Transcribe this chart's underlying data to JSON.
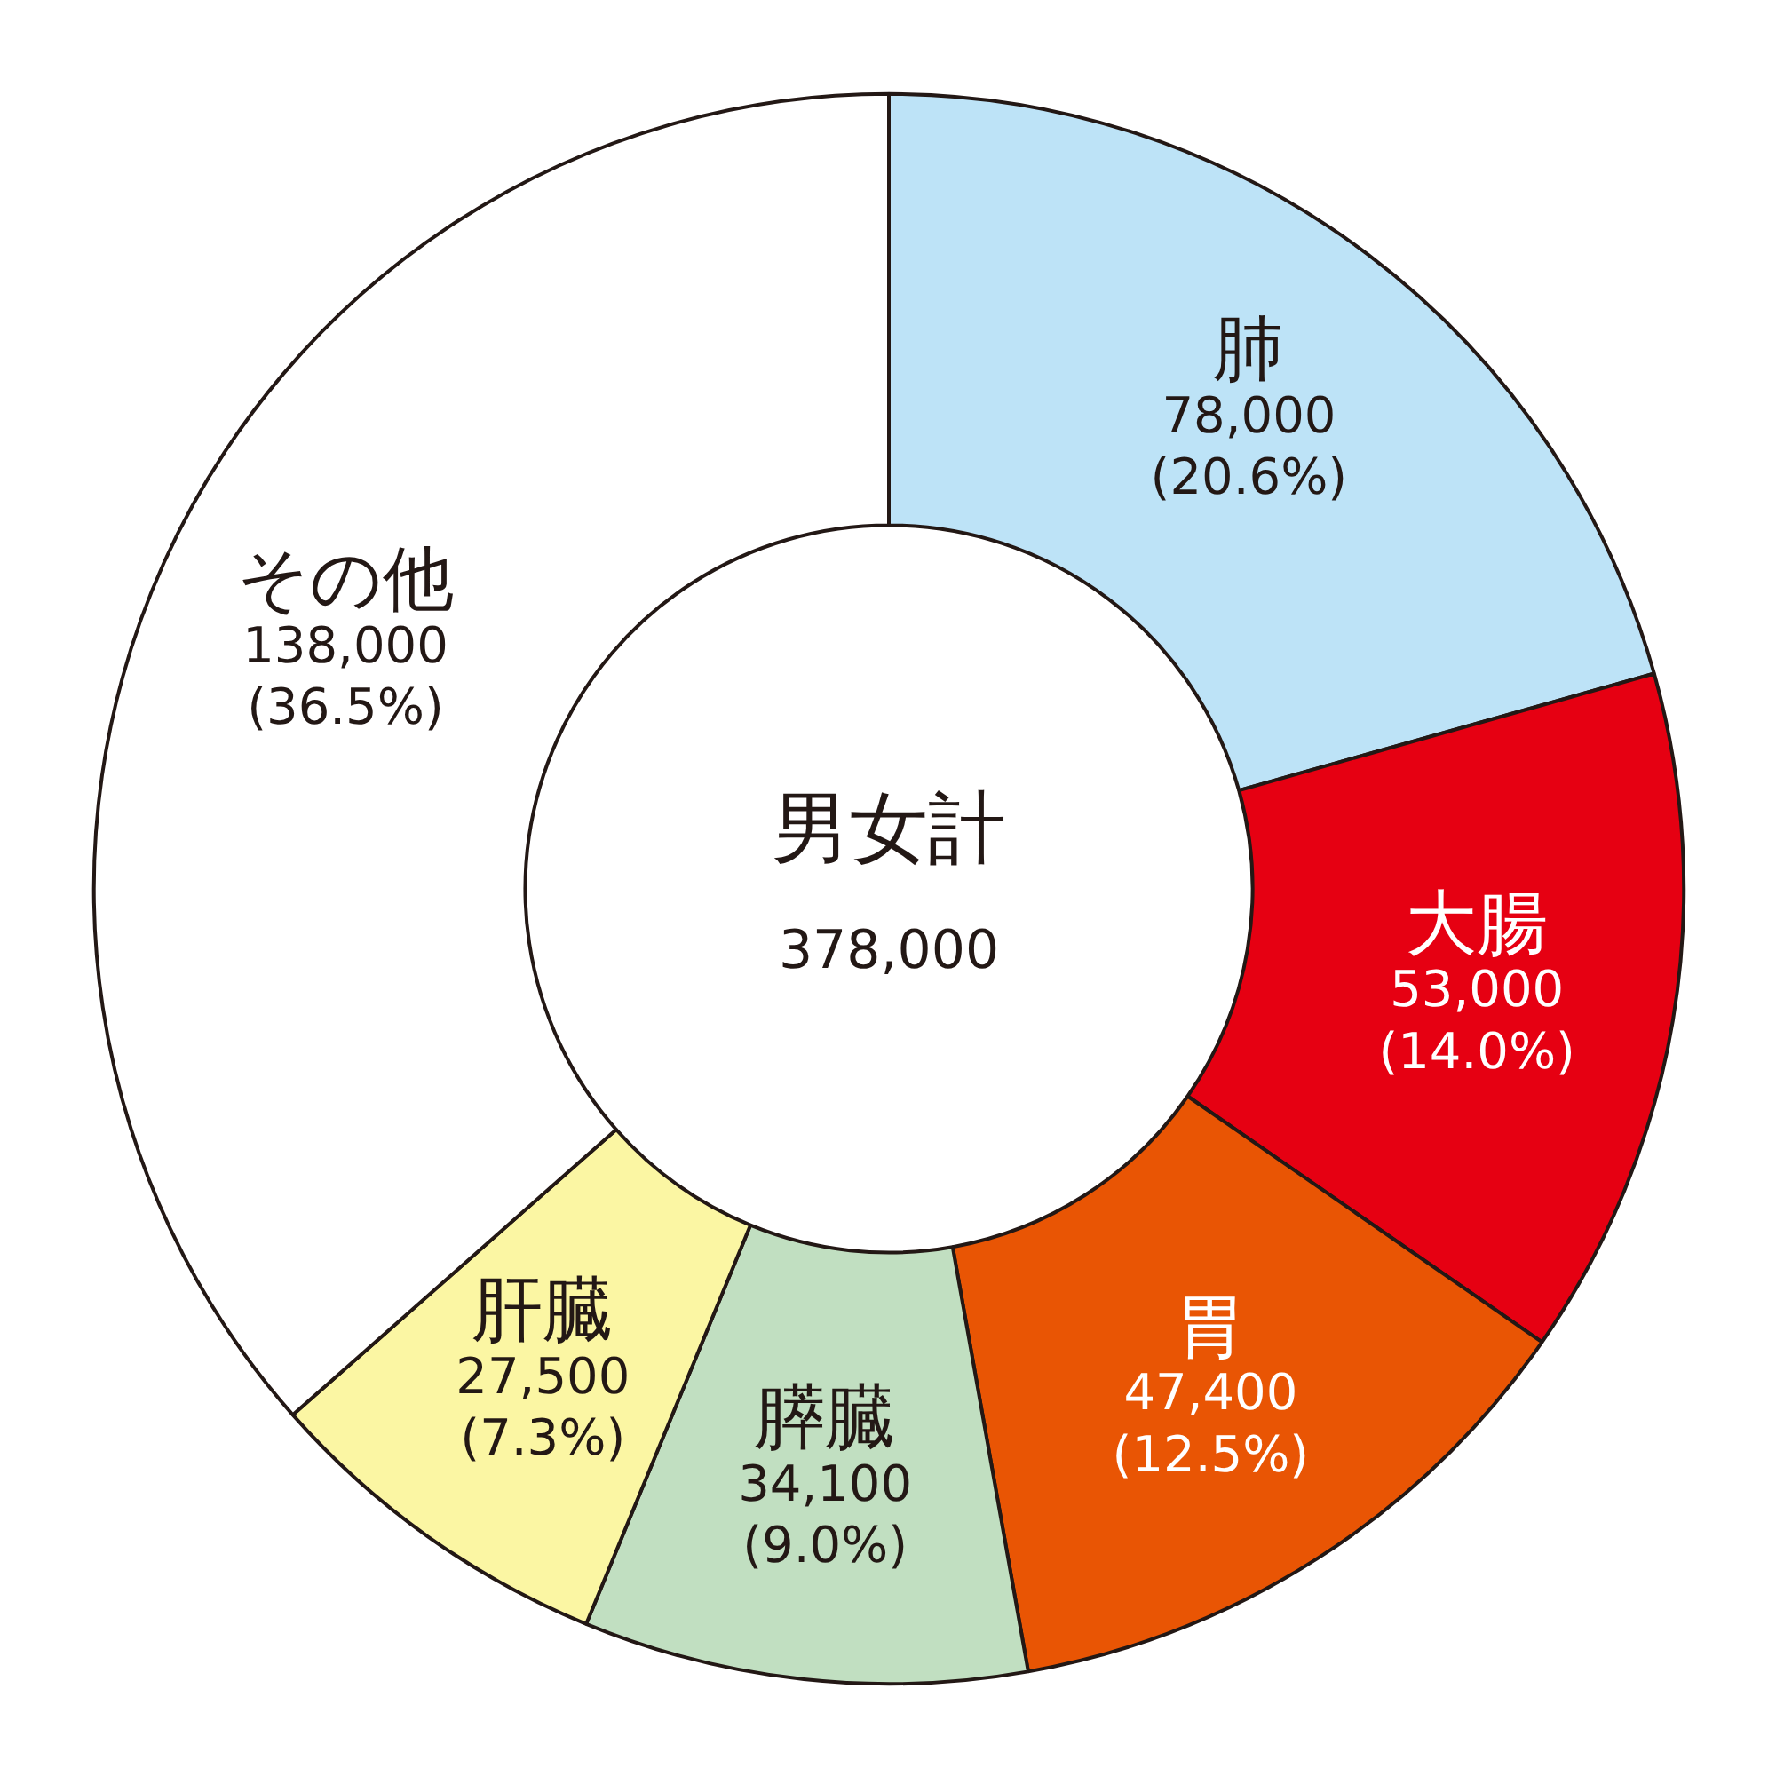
{
  "chart_data": {
    "type": "donut",
    "title": "男女計",
    "annotations": [
      "378,000"
    ],
    "categories": [
      "肺",
      "大腸",
      "胃",
      "膵臓",
      "肝臓",
      "その他"
    ],
    "values": [
      78000,
      53000,
      47400,
      34100,
      27500,
      138000
    ],
    "colors": [
      "#bde3f7",
      "#e60012",
      "#e95504",
      "#c1dfc1",
      "#fbf6a3",
      "#ffffff"
    ],
    "value_labels": [
      "78,000\n(20.6%)",
      "53,000\n(14.0%)",
      "47,400\n(12.5%)",
      "34,100\n(9.0%)",
      "27,500\n(7.3%)",
      "138,000\n(36.5%)"
    ]
  }
}
